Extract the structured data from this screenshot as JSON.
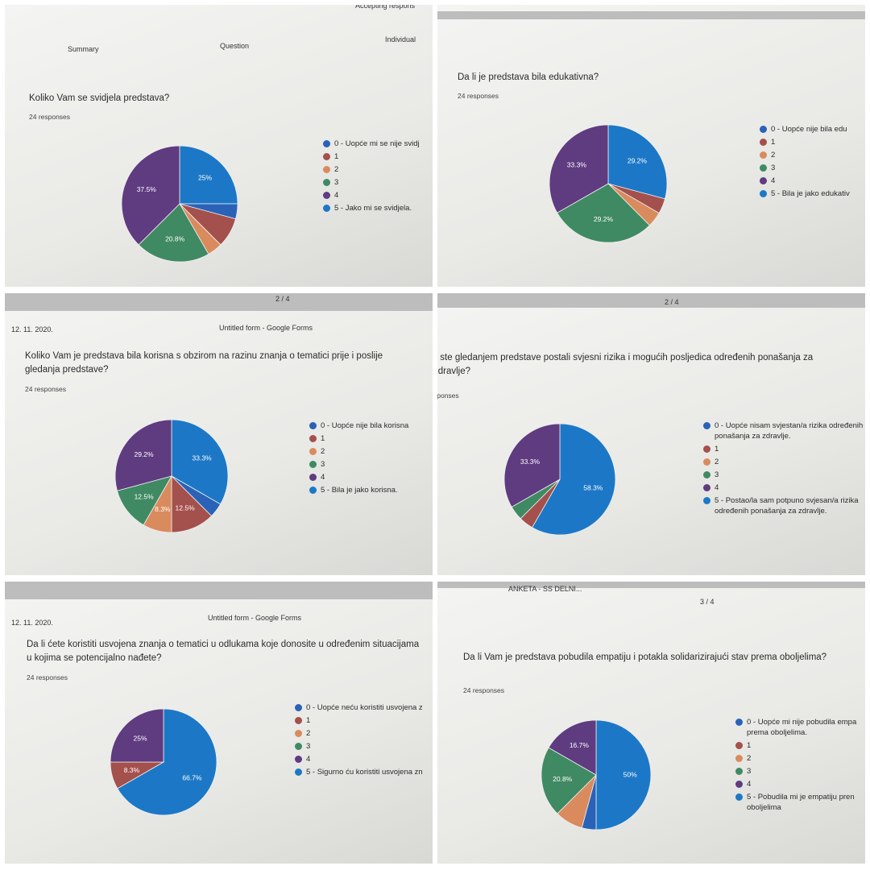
{
  "chart_data": [
    {
      "type": "pie",
      "title": "Koliko Vam se svidjela predstava?",
      "subtitle": "24 responses",
      "categories": [
        "0 - Uopće mi se nije svidj",
        "1",
        "2",
        "3",
        "4",
        "5 - Jako mi se svidjela."
      ],
      "values": [
        4.2,
        8.3,
        4.2,
        20.8,
        37.5,
        25
      ],
      "value_labels": [
        null,
        null,
        null,
        "20.8%",
        "37.5%",
        "25%"
      ],
      "colors": [
        "#2a62b8",
        "#a4504c",
        "#d98b5e",
        "#3f8a63",
        "#5f3b80",
        "#1c78c6"
      ]
    },
    {
      "type": "pie",
      "title": "Da li je predstava bila edukativna?",
      "subtitle": "24 responses",
      "categories": [
        "0 - Uopće nije bila edu",
        "1",
        "2",
        "3",
        "4",
        "5 - Bila je jako edukativ"
      ],
      "values": [
        0,
        4.2,
        4.2,
        29.2,
        33.3,
        29.2
      ],
      "value_labels": [
        null,
        null,
        null,
        "29.2%",
        "33.3%",
        "29.2%"
      ],
      "colors": [
        "#2a62b8",
        "#a4504c",
        "#d98b5e",
        "#3f8a63",
        "#5f3b80",
        "#1c78c6"
      ]
    },
    {
      "type": "pie",
      "title": "Koliko Vam je predstava bila korisna s obzirom na razinu znanja o tematici prije i poslije gledanja predstave?",
      "subtitle": "24 responses",
      "categories": [
        "0 - Uopće nije bila korisna",
        "1",
        "2",
        "3",
        "4",
        "5 - Bila je jako korisna."
      ],
      "values": [
        4.2,
        12.5,
        8.3,
        12.5,
        29.2,
        33.3
      ],
      "value_labels": [
        null,
        "12.5%",
        "8.3%",
        "12.5%",
        "29.2%",
        "33.3%"
      ],
      "colors": [
        "#2a62b8",
        "#a4504c",
        "#d98b5e",
        "#3f8a63",
        "#5f3b80",
        "#1c78c6"
      ]
    },
    {
      "type": "pie",
      "title": "li ste gledanjem predstave postali svjesni rizika i mogućih posljedica određenih ponašanja za zdravlje?",
      "subtitle": "sponses",
      "categories": [
        "0 - Uopće nisam svjestan/a rizika određenih ponašanja za zdravlje.",
        "1",
        "2",
        "3",
        "4",
        "5 - Postao/la sam potpuno svjesan/a rizika određenih ponašanja za zdravlje."
      ],
      "values": [
        0,
        4.2,
        0,
        4.2,
        33.3,
        58.3
      ],
      "value_labels": [
        null,
        null,
        null,
        null,
        "33.3%",
        "58.3%"
      ],
      "colors": [
        "#2a62b8",
        "#a4504c",
        "#d98b5e",
        "#3f8a63",
        "#5f3b80",
        "#1c78c6"
      ]
    },
    {
      "type": "pie",
      "title": "Da li ćete koristiti usvojena znanja o tematici u odlukama koje donosite u određenim situacijama u kojima se potencijalno nađete?",
      "subtitle": "24 responses",
      "categories": [
        "0 - Uopće neću koristiti usvojena z",
        "1",
        "2",
        "3",
        "4",
        "5 - Sigurno ću koristiti usvojena zn"
      ],
      "values": [
        0,
        8.3,
        0,
        0,
        25,
        66.7
      ],
      "value_labels": [
        null,
        "8.3%",
        null,
        null,
        "25%",
        "66.7%"
      ],
      "colors": [
        "#2a62b8",
        "#a4504c",
        "#d98b5e",
        "#3f8a63",
        "#5f3b80",
        "#1c78c6"
      ]
    },
    {
      "type": "pie",
      "title": "Da li Vam je predstava pobudila empatiju i potakla solidarizirajući stav prema oboljelima?",
      "subtitle": "24 responses",
      "categories": [
        "0 - Uopće mi nije pobudila empa prema oboljelima.",
        "1",
        "2",
        "3",
        "4",
        "5 - Pobudila mi je empatiju pren oboljelima"
      ],
      "values": [
        4.2,
        0,
        8.3,
        20.8,
        16.7,
        50
      ],
      "value_labels": [
        null,
        null,
        null,
        "20.8%",
        "16.7%",
        "50%"
      ],
      "colors": [
        "#2a62b8",
        "#a4504c",
        "#d98b5e",
        "#3f8a63",
        "#5f3b80",
        "#1c78c6"
      ]
    }
  ],
  "panels": [
    {
      "texts": [
        "Accepting respons",
        "Summary",
        "Question",
        "Individual"
      ]
    },
    {
      "texts": []
    },
    {
      "texts": [
        "12. 11. 2020.",
        "Untitled form - Google Forms",
        "2 / 4"
      ]
    },
    {
      "texts": [
        "2 / 4"
      ]
    },
    {
      "texts": [
        "12. 11. 2020.",
        "Untitled form - Google Forms"
      ]
    },
    {
      "texts": [
        "ANKETA - SS DELNI...",
        "3 / 4"
      ]
    }
  ]
}
